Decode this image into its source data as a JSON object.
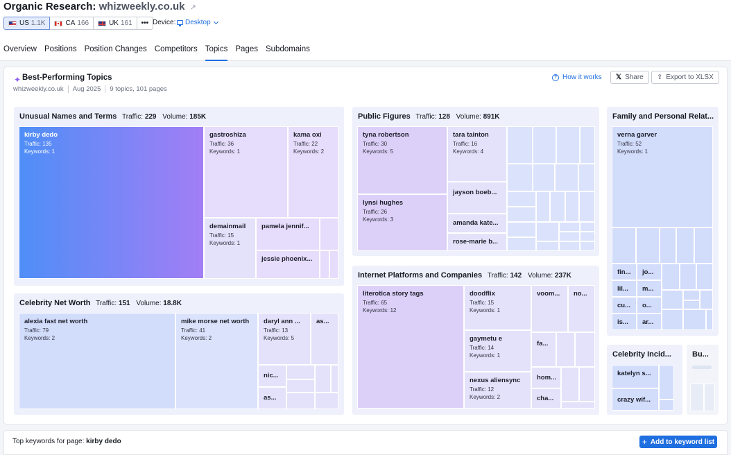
{
  "header": {
    "title": "Organic Research:",
    "domain": "whizweekly.co.uk",
    "databases": [
      {
        "code": "US",
        "count": "1.1K",
        "flag_icon": "us-flag-icon"
      },
      {
        "code": "CA",
        "count": "166",
        "flag_icon": "ca-flag-icon"
      },
      {
        "code": "UK",
        "count": "161",
        "flag_icon": "uk-flag-icon"
      }
    ],
    "more_label": "•••",
    "device_label": "Device:",
    "device_value": "Desktop"
  },
  "tabs": [
    "Overview",
    "Positions",
    "Position Changes",
    "Competitors",
    "Topics",
    "Pages",
    "Subdomains"
  ],
  "active_tab": "Topics",
  "card": {
    "title": "Best-Performing Topics",
    "meta": [
      "whizweekly.co.uk",
      "Aug 2025",
      "9 topics, 101 pages"
    ],
    "how_it_works": "How it works",
    "share": "Share",
    "export": "Export to XLSX"
  },
  "labels": {
    "traffic": "Traffic:",
    "volume": "Volume:"
  },
  "groups": {
    "unusual": {
      "name": "Unusual Names and Terms",
      "traffic": "229",
      "volume": "185K"
    },
    "celebrity_net_worth": {
      "name": "Celebrity Net Worth",
      "traffic": "151",
      "volume": "18.8K"
    },
    "public_figures": {
      "name": "Public Figures",
      "traffic": "128",
      "volume": "891K"
    },
    "internet_platforms": {
      "name": "Internet Platforms and Companies",
      "traffic": "142",
      "volume": "237K"
    },
    "family": {
      "name": "Family and Personal Relat..."
    },
    "celebrity_incid": {
      "name": "Celebrity Incid..."
    },
    "bu": {
      "name": "Bu..."
    }
  },
  "tiles": {
    "kirby_dedo": {
      "name": "kirby dedo",
      "traffic": "Traffic: 135",
      "keywords": "Keywords: 1"
    },
    "gastroshiza": {
      "name": "gastroshiza",
      "traffic": "Traffic: 36",
      "keywords": "Keywords: 1"
    },
    "kama_oxi": {
      "name": "kama oxi",
      "traffic": "Traffic: 22",
      "keywords": "Keywords: 2"
    },
    "demainmail": {
      "name": "demainmail",
      "traffic": "Traffic: 15",
      "keywords": "Keywords: 1"
    },
    "pamela": {
      "name": "pamela jennif..."
    },
    "jessie": {
      "name": "jessie phoenix..."
    },
    "alexia": {
      "name": "alexia fast net worth",
      "traffic": "Traffic: 79",
      "keywords": "Keywords: 2"
    },
    "mike": {
      "name": "mike morse net worth",
      "traffic": "Traffic: 41",
      "keywords": "Keywords: 2"
    },
    "daryl": {
      "name": "daryl ann ...",
      "traffic": "Traffic: 13",
      "keywords": "Keywords: 5"
    },
    "as_top": {
      "name": "as..."
    },
    "nic": {
      "name": "nic..."
    },
    "as_bottom": {
      "name": "as..."
    },
    "tyna": {
      "name": "tyna robertson",
      "traffic": "Traffic: 30",
      "keywords": "Keywords: 5"
    },
    "tara": {
      "name": "tara tainton",
      "traffic": "Traffic: 16",
      "keywords": "Keywords: 4"
    },
    "lynsi": {
      "name": "lynsi hughes",
      "traffic": "Traffic: 26",
      "keywords": "Keywords: 3"
    },
    "jayson": {
      "name": "jayson boeb..."
    },
    "amanda": {
      "name": "amanda kate..."
    },
    "rosemarie": {
      "name": "rose-marie b..."
    },
    "literotica": {
      "name": "literotica story tags",
      "traffic": "Traffic: 65",
      "keywords": "Keywords: 12"
    },
    "doodflix": {
      "name": "doodflix",
      "traffic": "Traffic: 15",
      "keywords": "Keywords: 1"
    },
    "voom": {
      "name": "voom..."
    },
    "no": {
      "name": "no..."
    },
    "gaymetu": {
      "name": "gaymetu e",
      "traffic": "Traffic: 14",
      "keywords": "Keywords: 1"
    },
    "fa": {
      "name": "fa..."
    },
    "nexus": {
      "name": "nexus aliensync",
      "traffic": "Traffic: 12",
      "keywords": "Keywords: 2"
    },
    "hom": {
      "name": "hom..."
    },
    "cha": {
      "name": "cha..."
    },
    "verna": {
      "name": "verna garver",
      "traffic": "Traffic: 52",
      "keywords": "Keywords: 1"
    },
    "fin": {
      "name": "fin..."
    },
    "jo": {
      "name": "jo..."
    },
    "lil": {
      "name": "lil..."
    },
    "m": {
      "name": "m..."
    },
    "cu": {
      "name": "cu..."
    },
    "o": {
      "name": "o..."
    },
    "is": {
      "name": "is..."
    },
    "ar": {
      "name": "ar..."
    },
    "katelyn": {
      "name": "katelyn s..."
    },
    "crazy": {
      "name": "crazy wif..."
    }
  },
  "bottom": {
    "prefix": "Top keywords for page:",
    "page": "kirby dedo",
    "add_button": "Add to keyword list"
  },
  "colors": {
    "accent": "#1f6fe0",
    "highlight_start": "#4f8ef7",
    "highlight_end": "#a27ef5"
  }
}
